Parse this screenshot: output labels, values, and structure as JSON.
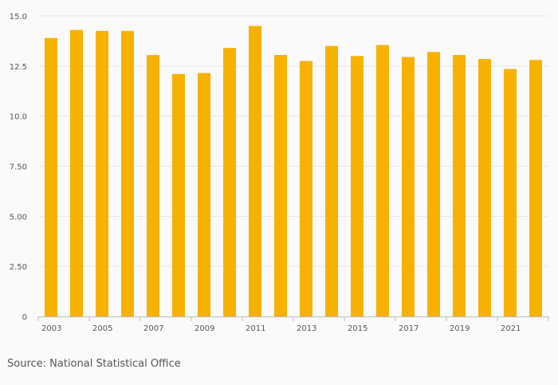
{
  "source": "Source: National Statistical Office",
  "colors": {
    "bar": "#f7b100",
    "grid": "#e6e6e6",
    "axis": "#bbbbbb",
    "background": "#fafafa"
  },
  "chart_data": {
    "type": "bar",
    "categories": [
      "2003",
      "2004",
      "2005",
      "2006",
      "2007",
      "2008",
      "2009",
      "2010",
      "2011",
      "2012",
      "2013",
      "2014",
      "2015",
      "2016",
      "2017",
      "2018",
      "2019",
      "2020",
      "2021",
      "2022"
    ],
    "x_tick_labels": [
      "2003",
      "2005",
      "2007",
      "2009",
      "2011",
      "2013",
      "2015",
      "2017",
      "2019",
      "2021"
    ],
    "values": [
      13.9,
      14.3,
      14.25,
      14.25,
      13.05,
      12.1,
      12.15,
      13.4,
      14.5,
      13.05,
      12.75,
      13.5,
      13.0,
      13.55,
      12.95,
      13.2,
      13.05,
      12.85,
      12.35,
      12.8
    ],
    "y_ticks": [
      "0",
      "2.50",
      "5.00",
      "7.50",
      "10.0",
      "12.5",
      "15.0"
    ],
    "y_tick_values": [
      0,
      2.5,
      5,
      7.5,
      10,
      12.5,
      15
    ],
    "ylim": [
      0,
      15
    ],
    "grid": true,
    "legend": "none"
  }
}
